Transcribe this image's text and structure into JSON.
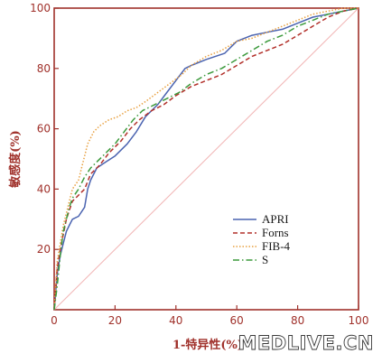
{
  "chart_data": {
    "type": "line",
    "title": "",
    "xlabel": "1-特异性(%)",
    "ylabel": "敏感度(%)",
    "xlim": [
      0,
      100
    ],
    "ylim": [
      0,
      100
    ],
    "xticks": [
      0,
      20,
      40,
      60,
      80,
      100
    ],
    "yticks": [
      20,
      40,
      60,
      80,
      100
    ],
    "grid": false,
    "legend_position": "bottom-right",
    "reference_line": {
      "x": [
        0,
        100
      ],
      "y": [
        0,
        100
      ],
      "color": "#f2b8b8"
    },
    "series": [
      {
        "name": "APRI",
        "color": "#4a63b0",
        "style": "solid",
        "x": [
          0,
          1,
          2,
          3,
          4,
          5,
          6,
          8,
          10,
          11,
          12,
          14,
          17,
          20,
          24,
          27,
          30,
          34,
          37,
          40,
          43,
          45,
          50,
          56,
          60,
          65,
          70,
          75,
          80,
          85,
          90,
          95,
          100
        ],
        "y": [
          0,
          12,
          18,
          22,
          26,
          28,
          30,
          31,
          34,
          40,
          43,
          47,
          49,
          51,
          55,
          59,
          64,
          68,
          72,
          76,
          80,
          81,
          83,
          85,
          89,
          91,
          92,
          93,
          95,
          97,
          98,
          99,
          100
        ]
      },
      {
        "name": "Forns",
        "color": "#b2302a",
        "style": "dashed",
        "x": [
          0,
          1,
          2,
          3,
          4,
          5,
          6,
          8,
          10,
          12,
          15,
          18,
          22,
          25,
          28,
          32,
          36,
          40,
          45,
          50,
          55,
          60,
          65,
          70,
          75,
          80,
          85,
          90,
          95,
          100
        ],
        "y": [
          0,
          14,
          20,
          25,
          30,
          33,
          36,
          38,
          40,
          45,
          48,
          52,
          56,
          60,
          63,
          66,
          68,
          71,
          74,
          76,
          78,
          81,
          84,
          86,
          88,
          91,
          94,
          97,
          99,
          100
        ]
      },
      {
        "name": "FIB-4",
        "color": "#e8a040",
        "style": "dotted",
        "x": [
          0,
          1,
          2,
          3,
          4,
          5,
          6,
          8,
          9,
          10,
          11,
          13,
          15,
          18,
          21,
          24,
          27,
          30,
          34,
          38,
          42,
          45,
          50,
          55,
          60,
          65,
          70,
          75,
          80,
          85,
          90,
          95,
          100
        ],
        "y": [
          0,
          16,
          22,
          28,
          32,
          36,
          40,
          43,
          47,
          51,
          55,
          59,
          61,
          63,
          64,
          66,
          67,
          69,
          72,
          75,
          78,
          81,
          84,
          86,
          89,
          90,
          92,
          94,
          96,
          98,
          99,
          100,
          100
        ]
      },
      {
        "name": "S",
        "color": "#3c9a3c",
        "style": "dashdot",
        "x": [
          0,
          1,
          2,
          3,
          4,
          5,
          6,
          8,
          10,
          12,
          14,
          17,
          20,
          23,
          26,
          29,
          33,
          37,
          41,
          45,
          50,
          55,
          60,
          65,
          70,
          75,
          80,
          85,
          90,
          95,
          100
        ],
        "y": [
          0,
          8,
          18,
          26,
          30,
          34,
          37,
          40,
          44,
          47,
          49,
          52,
          55,
          59,
          63,
          66,
          68,
          70,
          72,
          75,
          78,
          80,
          83,
          86,
          89,
          91,
          94,
          96,
          98,
          99,
          100
        ]
      }
    ]
  },
  "watermark": "MEDLIVE.CN"
}
